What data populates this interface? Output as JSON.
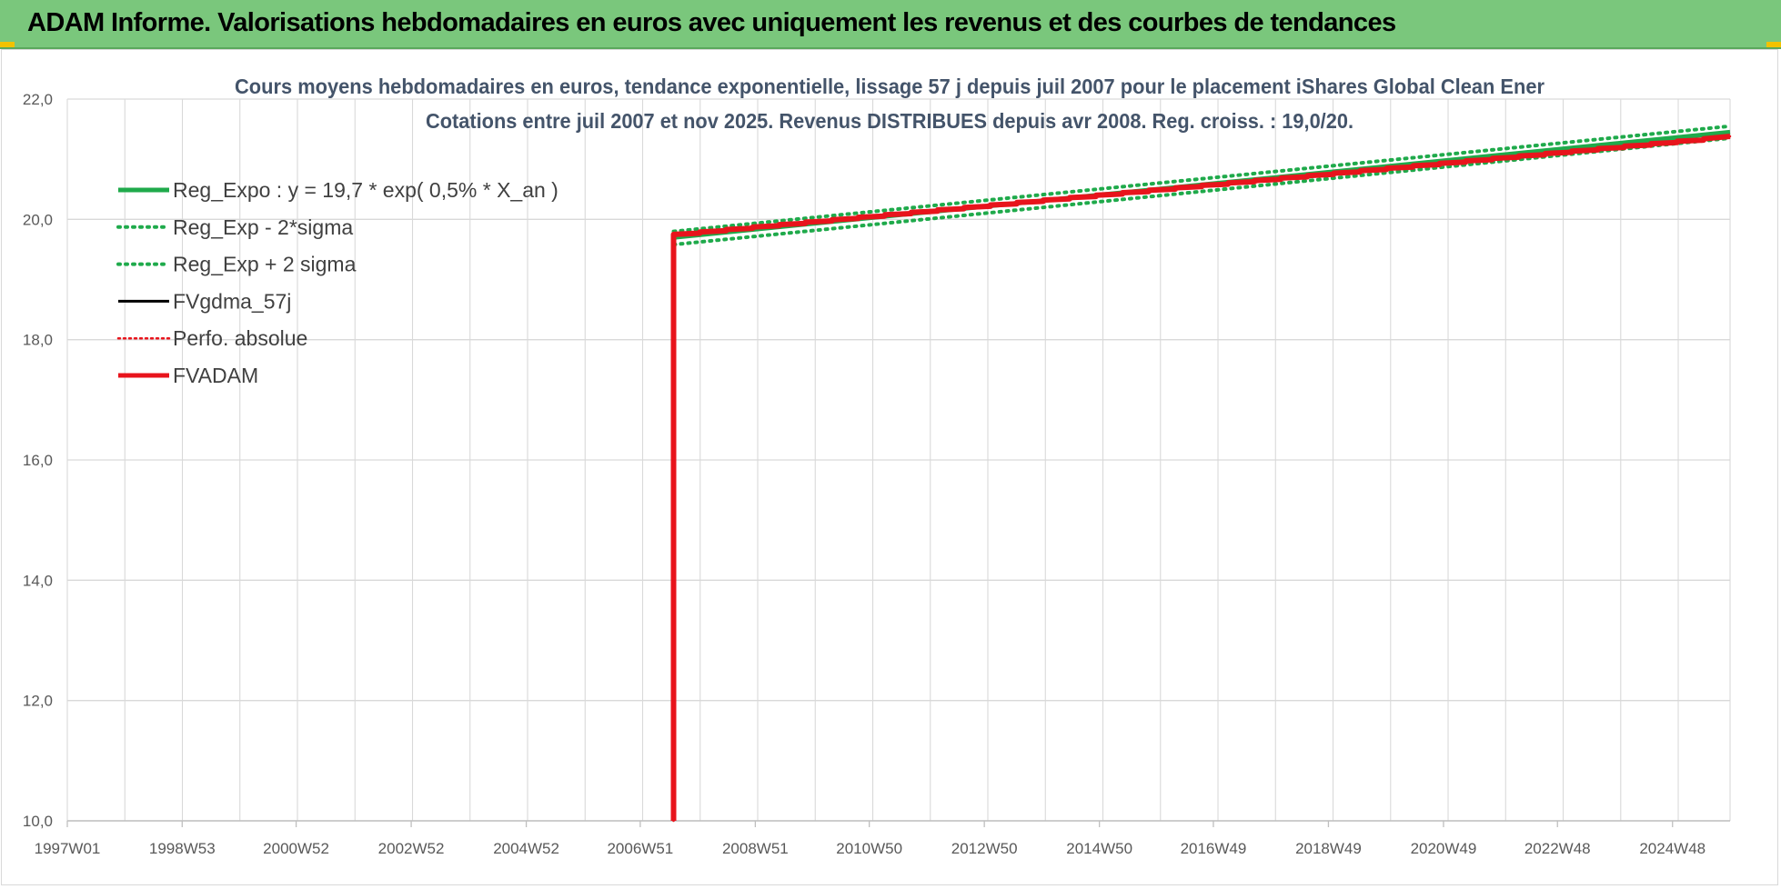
{
  "banner": {
    "title": "ADAM Informe. Valorisations hebdomadaires en euros avec uniquement les revenus et des courbes de tendances"
  },
  "colors": {
    "banner_bg": "#7ac77c",
    "reg_green": "#1faa4b",
    "adam_red": "#e8141c",
    "black_line": "#000000",
    "grid": "#d9d9d9",
    "title": "#44546a"
  },
  "chart_data": {
    "type": "line",
    "title": "Cours moyens hebdomadaires en euros, tendance exponentielle, lissage 57 j depuis juil 2007 pour le placement iShares Global Clean Ener",
    "subtitle": "Cotations entre juil 2007 et nov 2025. Revenus DISTRIBUES depuis avr 2008. Reg. croiss. : 19,0/20.",
    "xlabel": "",
    "ylabel": "",
    "x_tick_labels": [
      "1997W01",
      "1998W53",
      "2000W52",
      "2002W52",
      "2004W52",
      "2006W51",
      "2008W51",
      "2010W50",
      "2012W50",
      "2014W50",
      "2016W49",
      "2018W49",
      "2020W49",
      "2022W48",
      "2024W48"
    ],
    "x_range": [
      "1997W01",
      "2025W48"
    ],
    "ylim": [
      10.0,
      22.0
    ],
    "y_ticks": [
      "10,0",
      "12,0",
      "14,0",
      "16,0",
      "18,0",
      "20,0",
      "22,0"
    ],
    "grid": true,
    "legend_position": "top-left",
    "start_point": {
      "x": "2007W29",
      "y": 10.0
    },
    "series": [
      {
        "name": "Reg_Expo : y = 19,7 * exp( 0,5% *  X_an )",
        "style": "solid",
        "x": [
          "2007W29",
          "2025W48"
        ],
        "values": [
          19.7,
          21.45
        ]
      },
      {
        "name": "Reg_Exp - 2*sigma",
        "style": "dotted",
        "x": [
          "2007W29",
          "2025W48"
        ],
        "values": [
          19.58,
          21.35
        ]
      },
      {
        "name": "Reg_Exp + 2 sigma",
        "style": "dotted",
        "x": [
          "2007W29",
          "2025W48"
        ],
        "values": [
          19.8,
          21.55
        ]
      },
      {
        "name": "FVgdma_57j",
        "style": "solid",
        "x": [
          "2007W29",
          "2025W48"
        ],
        "values": [
          19.75,
          21.38
        ]
      },
      {
        "name": "Perfo. absolue",
        "style": "dotted",
        "x": [
          "2007W29",
          "2025W48"
        ],
        "values": [
          19.75,
          21.38
        ]
      },
      {
        "name": "FVADAM",
        "style": "solid-thick",
        "x": [
          "2007W29",
          "2025W48"
        ],
        "values": [
          19.75,
          21.38
        ]
      }
    ]
  }
}
